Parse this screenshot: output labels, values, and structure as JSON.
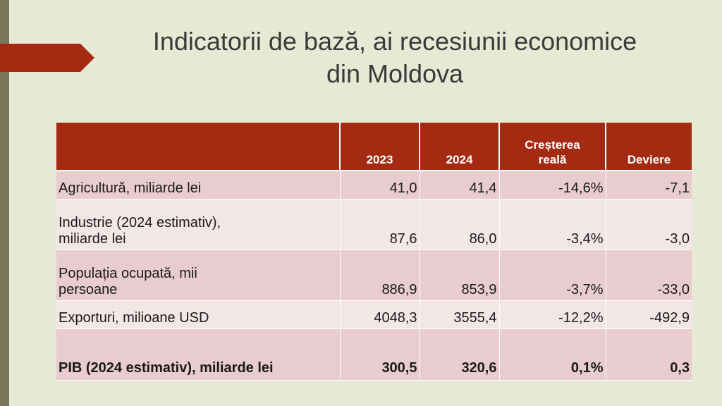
{
  "slide": {
    "title_line1": "Indicatorii de bază, ai recesiunii economice",
    "title_line2": "din Moldova"
  },
  "table": {
    "headers": [
      "",
      "2023",
      "2024",
      "Creșterea",
      "reală",
      "Deviere"
    ],
    "rows": [
      {
        "label_line1": "Agricultură, miliarde lei",
        "label_line2": "",
        "v2023": "41,0",
        "v2024": "41,4",
        "growth": "-14,6%",
        "deviation": "-7,1"
      },
      {
        "label_line1": "Industrie (2024 estimativ),",
        "label_line2": "miliarde lei",
        "v2023": "87,6",
        "v2024": "86,0",
        "growth": "-3,4%",
        "deviation": "-3,0"
      },
      {
        "label_line1": "Populația ocupată, mii",
        "label_line2": "persoane",
        "v2023": "886,9",
        "v2024": "853,9",
        "growth": "-3,7%",
        "deviation": "-33,0"
      },
      {
        "label_line1": "Exporturi, milioane USD",
        "label_line2": "",
        "v2023": "4048,3",
        "v2024": "3555,4",
        "growth": "-12,2%",
        "deviation": "-492,9"
      },
      {
        "label_line1": "PIB (2024 estimativ), miliarde lei",
        "label_line2": "",
        "v2023": "300,5",
        "v2024": "320,6",
        "growth": "0,1%",
        "deviation": "0,3"
      }
    ]
  },
  "colors": {
    "background": "#e6ead4",
    "header": "#a52a12",
    "row_dark": "#e8cccf",
    "row_light": "#f3e6e7",
    "left_bar": "#7a7758"
  }
}
